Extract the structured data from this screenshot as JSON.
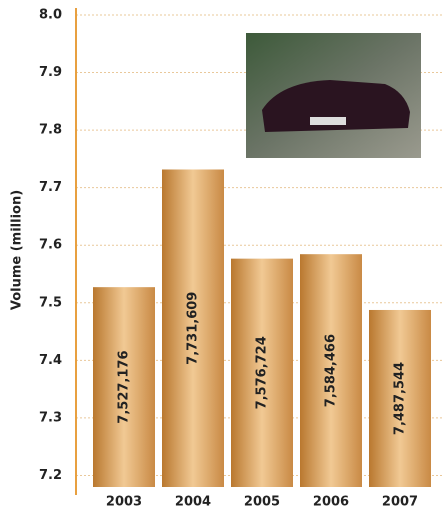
{
  "chart_data": {
    "type": "bar",
    "y_label": "Volume (million)",
    "categories": [
      "2003",
      "2004",
      "2005",
      "2006",
      "2007"
    ],
    "values": [
      7.527176,
      7.731609,
      7.576724,
      7.584466,
      7.487544
    ],
    "value_labels": [
      "7,527,176",
      "7,731,609",
      "7,576,724",
      "7,584,466",
      "7,487,544"
    ],
    "ylim": [
      7.18,
      8.0
    ],
    "yticks": [
      7.2,
      7.3,
      7.4,
      7.5,
      7.6,
      7.7,
      7.8,
      7.9,
      "8.0"
    ],
    "grid": true,
    "color": "#d09a55"
  }
}
